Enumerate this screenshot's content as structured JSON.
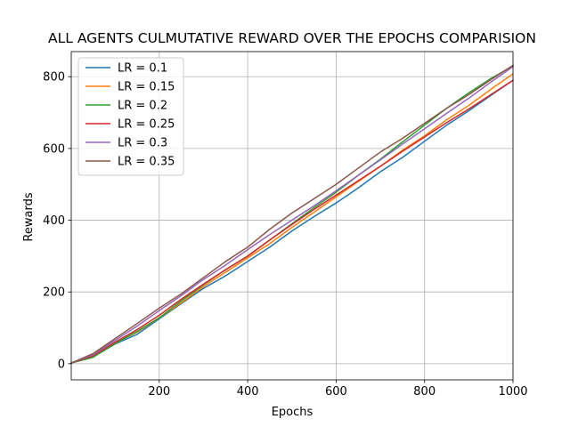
{
  "chart_data": {
    "type": "line",
    "title": "ALL AGENTS CULMUTATIVE REWARD OVER THE EPOCHS COMPARISION",
    "xlabel": "Epochs",
    "ylabel": "Rewards",
    "xlim": [
      1,
      1000
    ],
    "ylim": [
      -45,
      870
    ],
    "x_ticks": [
      200,
      400,
      600,
      800,
      1000
    ],
    "y_ticks": [
      0,
      200,
      400,
      600,
      800
    ],
    "grid": true,
    "legend_position": "top-left",
    "series": [
      {
        "name": "LR = 0.1",
        "color": "#1f77b4",
        "x": [
          1,
          50,
          100,
          150,
          200,
          250,
          300,
          350,
          400,
          450,
          500,
          550,
          600,
          650,
          700,
          750,
          800,
          850,
          900,
          950,
          1000
        ],
        "values": [
          2,
          18,
          55,
          82,
          125,
          168,
          210,
          245,
          285,
          325,
          370,
          410,
          448,
          490,
          535,
          575,
          620,
          665,
          705,
          748,
          790
        ]
      },
      {
        "name": "LR = 0.15",
        "color": "#ff7f0e",
        "x": [
          1,
          50,
          100,
          150,
          200,
          250,
          300,
          350,
          400,
          450,
          500,
          550,
          600,
          650,
          700,
          750,
          800,
          850,
          900,
          950,
          1000
        ],
        "values": [
          2,
          20,
          58,
          88,
          128,
          170,
          215,
          255,
          295,
          335,
          380,
          422,
          465,
          508,
          550,
          595,
          635,
          680,
          720,
          765,
          808
        ]
      },
      {
        "name": "LR = 0.2",
        "color": "#2ca02c",
        "x": [
          1,
          50,
          100,
          150,
          200,
          250,
          300,
          350,
          400,
          450,
          500,
          550,
          600,
          650,
          700,
          750,
          800,
          850,
          900,
          950,
          1000
        ],
        "values": [
          2,
          18,
          56,
          90,
          128,
          175,
          220,
          262,
          300,
          345,
          390,
          435,
          478,
          525,
          570,
          618,
          665,
          712,
          755,
          795,
          830
        ]
      },
      {
        "name": "LR = 0.25",
        "color": "#d62728",
        "x": [
          1,
          50,
          100,
          150,
          200,
          250,
          300,
          350,
          400,
          450,
          500,
          550,
          600,
          650,
          700,
          750,
          800,
          850,
          900,
          950,
          1000
        ],
        "values": [
          2,
          22,
          60,
          95,
          135,
          180,
          222,
          262,
          300,
          345,
          388,
          430,
          470,
          510,
          550,
          592,
          632,
          672,
          710,
          750,
          790
        ]
      },
      {
        "name": "LR = 0.3",
        "color": "#9467bd",
        "x": [
          1,
          50,
          100,
          150,
          200,
          250,
          300,
          350,
          400,
          450,
          500,
          550,
          600,
          650,
          700,
          750,
          800,
          850,
          900,
          950,
          1000
        ],
        "values": [
          2,
          25,
          65,
          105,
          148,
          190,
          235,
          275,
          318,
          360,
          400,
          440,
          482,
          525,
          568,
          612,
          655,
          698,
          740,
          785,
          828
        ]
      },
      {
        "name": "LR = 0.35",
        "color": "#8c564b",
        "x": [
          1,
          50,
          100,
          150,
          200,
          250,
          300,
          350,
          400,
          450,
          500,
          550,
          600,
          650,
          700,
          750,
          800,
          850,
          900,
          950,
          1000
        ],
        "values": [
          2,
          28,
          70,
          112,
          155,
          195,
          240,
          285,
          325,
          375,
          420,
          460,
          500,
          545,
          590,
          628,
          670,
          712,
          750,
          792,
          832
        ]
      }
    ]
  }
}
